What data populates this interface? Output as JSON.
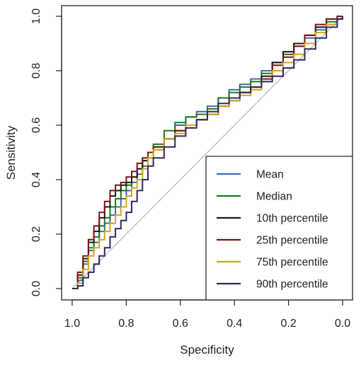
{
  "chart_data": {
    "type": "line",
    "title": "",
    "xlabel": "Specificity",
    "ylabel": "Sensitivity",
    "x_reversed": true,
    "xlim": [
      1.0,
      0.0
    ],
    "ylim": [
      0.0,
      1.0
    ],
    "x_ticks": [
      "1.0",
      "0.8",
      "0.6",
      "0.4",
      "0.2",
      "0.0"
    ],
    "y_ticks": [
      "0.0",
      "0.2",
      "0.4",
      "0.6",
      "0.8",
      "1.0"
    ],
    "grid": false,
    "legend_position": "bottom-right",
    "reference_line": {
      "from": [
        1.0,
        0.0
      ],
      "to": [
        0.0,
        1.0
      ],
      "color": "#b3b3b3"
    },
    "series": [
      {
        "name": "Mean",
        "color": "#3a6fa8",
        "x": [
          1.0,
          0.98,
          0.96,
          0.94,
          0.92,
          0.9,
          0.88,
          0.86,
          0.84,
          0.82,
          0.8,
          0.78,
          0.76,
          0.74,
          0.72,
          0.7,
          0.66,
          0.62,
          0.58,
          0.54,
          0.5,
          0.46,
          0.42,
          0.38,
          0.34,
          0.3,
          0.26,
          0.22,
          0.18,
          0.14,
          0.1,
          0.06,
          0.02,
          0.0
        ],
        "y": [
          0.0,
          0.03,
          0.09,
          0.14,
          0.17,
          0.21,
          0.24,
          0.27,
          0.3,
          0.33,
          0.36,
          0.39,
          0.42,
          0.45,
          0.48,
          0.51,
          0.55,
          0.6,
          0.63,
          0.65,
          0.67,
          0.7,
          0.73,
          0.75,
          0.77,
          0.8,
          0.83,
          0.86,
          0.89,
          0.92,
          0.95,
          0.97,
          0.99,
          1.0
        ]
      },
      {
        "name": "Median",
        "color": "#1f7a1f",
        "x": [
          1.0,
          0.98,
          0.96,
          0.94,
          0.92,
          0.9,
          0.88,
          0.86,
          0.84,
          0.82,
          0.8,
          0.78,
          0.76,
          0.74,
          0.72,
          0.7,
          0.66,
          0.62,
          0.58,
          0.54,
          0.5,
          0.46,
          0.42,
          0.38,
          0.34,
          0.3,
          0.26,
          0.22,
          0.18,
          0.14,
          0.1,
          0.06,
          0.02,
          0.0
        ],
        "y": [
          0.0,
          0.04,
          0.1,
          0.15,
          0.19,
          0.23,
          0.26,
          0.3,
          0.33,
          0.36,
          0.38,
          0.41,
          0.44,
          0.47,
          0.5,
          0.53,
          0.58,
          0.61,
          0.63,
          0.64,
          0.66,
          0.7,
          0.72,
          0.74,
          0.76,
          0.79,
          0.83,
          0.86,
          0.9,
          0.93,
          0.96,
          0.98,
          0.99,
          1.0
        ]
      },
      {
        "name": "10th percentile",
        "color": "#1a1a1a",
        "x": [
          1.0,
          0.98,
          0.96,
          0.94,
          0.92,
          0.9,
          0.88,
          0.86,
          0.84,
          0.82,
          0.8,
          0.78,
          0.76,
          0.74,
          0.72,
          0.7,
          0.66,
          0.62,
          0.58,
          0.54,
          0.5,
          0.46,
          0.42,
          0.38,
          0.34,
          0.3,
          0.26,
          0.22,
          0.18,
          0.14,
          0.1,
          0.06,
          0.02,
          0.0
        ],
        "y": [
          0.0,
          0.05,
          0.11,
          0.17,
          0.21,
          0.26,
          0.3,
          0.34,
          0.36,
          0.38,
          0.39,
          0.41,
          0.44,
          0.47,
          0.5,
          0.52,
          0.55,
          0.58,
          0.6,
          0.62,
          0.64,
          0.67,
          0.7,
          0.72,
          0.74,
          0.78,
          0.83,
          0.87,
          0.9,
          0.93,
          0.96,
          0.99,
          1.0,
          1.0
        ]
      },
      {
        "name": "25th percentile",
        "color": "#7a1414",
        "x": [
          1.0,
          0.98,
          0.96,
          0.94,
          0.92,
          0.9,
          0.88,
          0.86,
          0.84,
          0.82,
          0.8,
          0.78,
          0.76,
          0.74,
          0.72,
          0.7,
          0.66,
          0.62,
          0.58,
          0.54,
          0.5,
          0.46,
          0.42,
          0.38,
          0.34,
          0.3,
          0.26,
          0.22,
          0.18,
          0.14,
          0.1,
          0.06,
          0.02,
          0.0
        ],
        "y": [
          0.0,
          0.06,
          0.12,
          0.18,
          0.23,
          0.28,
          0.32,
          0.36,
          0.38,
          0.39,
          0.41,
          0.43,
          0.46,
          0.48,
          0.5,
          0.52,
          0.55,
          0.58,
          0.6,
          0.62,
          0.64,
          0.67,
          0.69,
          0.72,
          0.74,
          0.77,
          0.82,
          0.85,
          0.89,
          0.93,
          0.97,
          0.99,
          1.0,
          1.0
        ]
      },
      {
        "name": "75th percentile",
        "color": "#d4a520",
        "x": [
          1.0,
          0.98,
          0.96,
          0.94,
          0.92,
          0.9,
          0.88,
          0.86,
          0.84,
          0.82,
          0.8,
          0.78,
          0.76,
          0.74,
          0.72,
          0.7,
          0.66,
          0.62,
          0.58,
          0.54,
          0.5,
          0.46,
          0.42,
          0.38,
          0.34,
          0.3,
          0.26,
          0.22,
          0.18,
          0.14,
          0.1,
          0.06,
          0.02,
          0.0
        ],
        "y": [
          0.0,
          0.02,
          0.07,
          0.12,
          0.15,
          0.18,
          0.21,
          0.24,
          0.27,
          0.3,
          0.34,
          0.37,
          0.4,
          0.44,
          0.48,
          0.51,
          0.55,
          0.57,
          0.6,
          0.62,
          0.64,
          0.67,
          0.69,
          0.71,
          0.73,
          0.76,
          0.8,
          0.83,
          0.86,
          0.9,
          0.94,
          0.97,
          0.99,
          1.0
        ]
      },
      {
        "name": "90th percentile",
        "color": "#2b2b5e",
        "x": [
          1.0,
          0.98,
          0.96,
          0.94,
          0.92,
          0.9,
          0.88,
          0.86,
          0.84,
          0.82,
          0.8,
          0.78,
          0.76,
          0.74,
          0.72,
          0.7,
          0.66,
          0.62,
          0.58,
          0.54,
          0.5,
          0.46,
          0.42,
          0.38,
          0.34,
          0.3,
          0.26,
          0.22,
          0.18,
          0.14,
          0.1,
          0.06,
          0.02,
          0.0
        ],
        "y": [
          0.0,
          0.01,
          0.04,
          0.06,
          0.09,
          0.12,
          0.15,
          0.19,
          0.22,
          0.25,
          0.28,
          0.32,
          0.36,
          0.4,
          0.45,
          0.48,
          0.52,
          0.56,
          0.59,
          0.62,
          0.65,
          0.68,
          0.7,
          0.72,
          0.74,
          0.76,
          0.78,
          0.81,
          0.84,
          0.88,
          0.92,
          0.96,
          0.99,
          1.0
        ]
      }
    ]
  }
}
